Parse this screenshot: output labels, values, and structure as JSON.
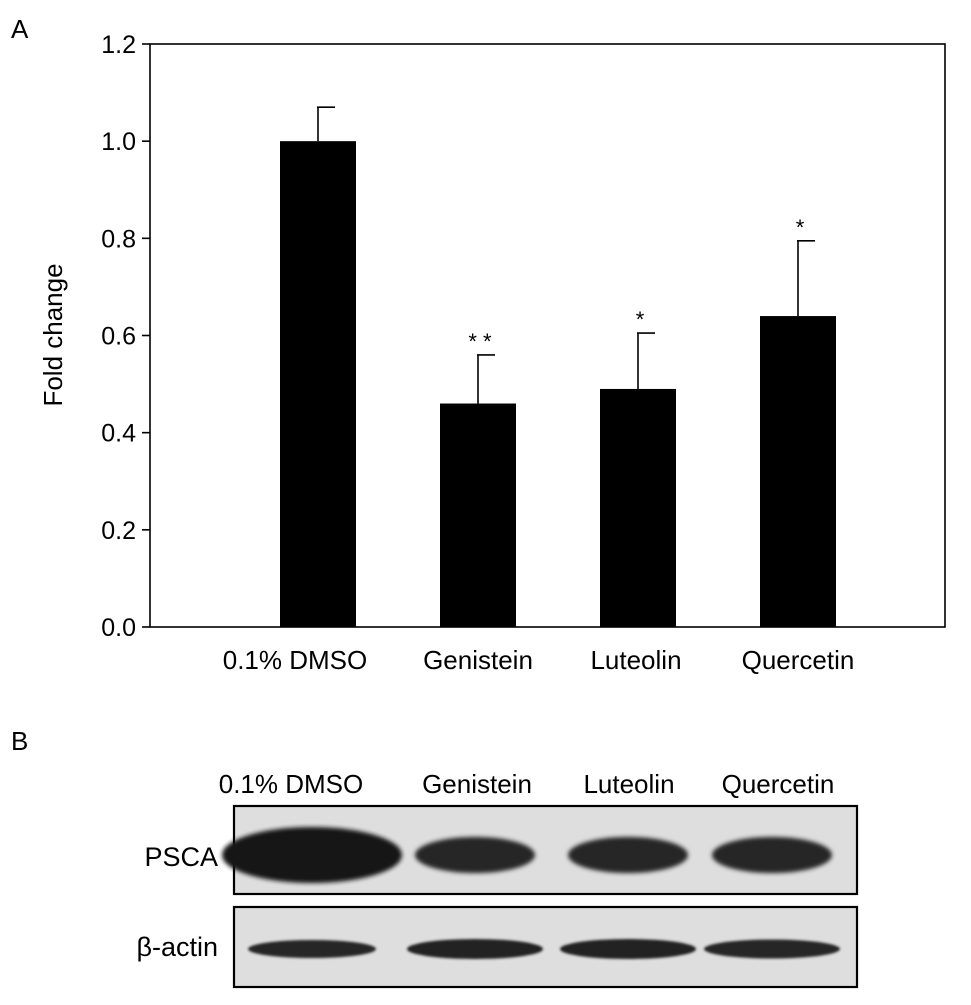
{
  "panel_a": {
    "label": "A",
    "chart_data": {
      "type": "bar",
      "categories": [
        "0.1% DMSO",
        "Genistein",
        "Luteolin",
        "Quercetin"
      ],
      "values": [
        1.0,
        0.46,
        0.49,
        0.64
      ],
      "error_upper": [
        0.07,
        0.1,
        0.115,
        0.155
      ],
      "annotations": [
        "",
        "* *",
        "*",
        "*"
      ],
      "ylabel": "Fold change",
      "xlabel": "",
      "ylim": [
        0,
        1.2
      ],
      "yticks": [
        "0.0",
        "0.2",
        "0.4",
        "0.6",
        "0.8",
        "1.0",
        "1.2"
      ],
      "bar_color": "#000000",
      "grid": false,
      "legend": "none"
    }
  },
  "panel_b": {
    "label": "B",
    "lane_labels": [
      "0.1% DMSO",
      "Genistein",
      "Luteolin",
      "Quercetin"
    ],
    "blots": [
      {
        "name": "PSCA",
        "band_intensity": [
          1.0,
          0.55,
          0.55,
          0.55
        ]
      },
      {
        "name": "β-actin",
        "band_intensity": [
          0.5,
          0.6,
          0.6,
          0.55
        ]
      }
    ]
  }
}
